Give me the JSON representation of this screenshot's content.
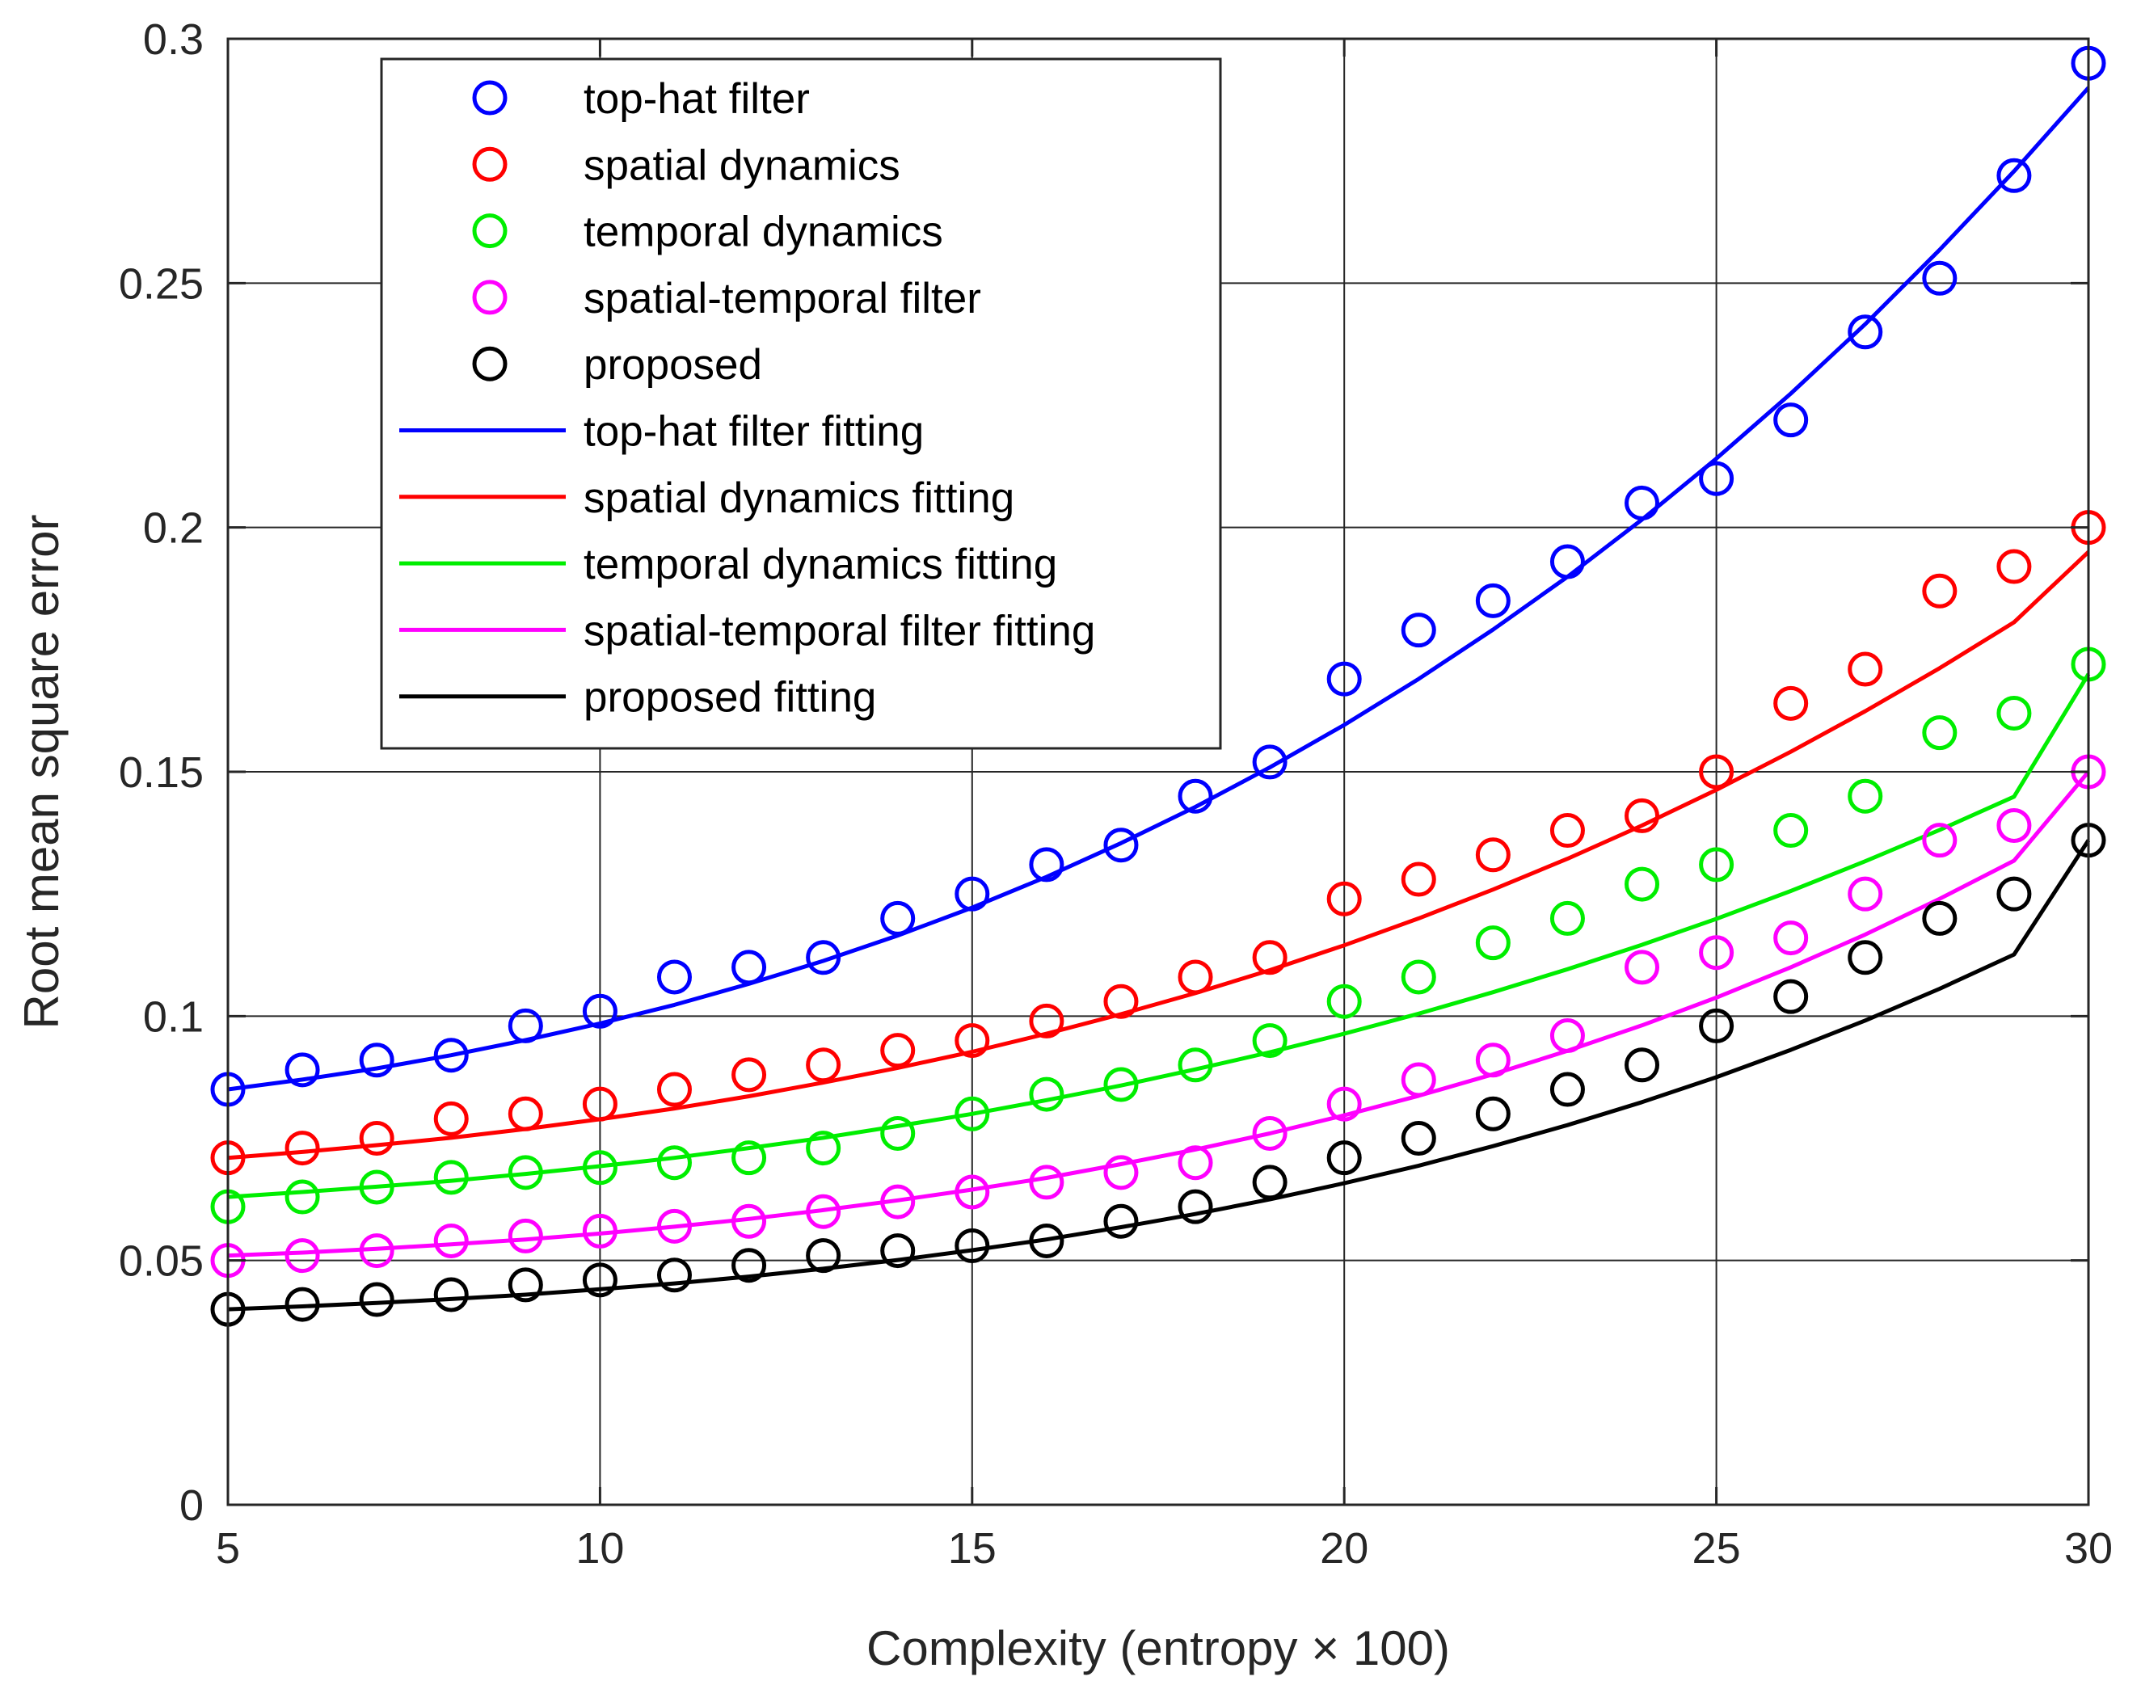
{
  "chart_data": {
    "type": "scatter",
    "title": "",
    "xlabel": "Complexity (entropy × 100)",
    "ylabel": "Root mean square error",
    "xlim": [
      5,
      30
    ],
    "ylim": [
      0,
      0.3
    ],
    "xticks": [
      5,
      10,
      15,
      20,
      25,
      30
    ],
    "xtick_labels": [
      "5",
      "10",
      "15",
      "20",
      "25",
      "30"
    ],
    "yticks": [
      0,
      0.05,
      0.1,
      0.15,
      0.2,
      0.25,
      0.3
    ],
    "ytick_labels": [
      "0",
      "0.05",
      "0.1",
      "0.15",
      "0.2",
      "0.25",
      "0.3"
    ],
    "grid": true,
    "legend_position": "top-left",
    "x": [
      5,
      6,
      7,
      8,
      9,
      10,
      11,
      12,
      13,
      14,
      15,
      16,
      17,
      18,
      19,
      20,
      21,
      22,
      23,
      24,
      25,
      26,
      27,
      28,
      29,
      30
    ],
    "series": [
      {
        "name": "top-hat filter",
        "fit_name": "top-hat filter fitting",
        "color": "#0000ff",
        "values": [
          0.085,
          0.089,
          0.091,
          0.092,
          0.098,
          0.101,
          0.108,
          0.11,
          0.112,
          0.12,
          0.125,
          0.131,
          0.135,
          0.145,
          0.152,
          0.169,
          0.179,
          0.185,
          0.193,
          0.205,
          0.21,
          0.222,
          0.24,
          0.251,
          0.272,
          0.295
        ],
        "fit": [
          0.085,
          0.087,
          0.0893,
          0.092,
          0.0951,
          0.0985,
          0.1023,
          0.1066,
          0.1113,
          0.1165,
          0.1222,
          0.1285,
          0.1354,
          0.1428,
          0.1509,
          0.1596,
          0.169,
          0.1791,
          0.1899,
          0.2016,
          0.2141,
          0.2274,
          0.2416,
          0.2568,
          0.2729,
          0.29
        ]
      },
      {
        "name": "spatial dynamics",
        "fit_name": "spatial dynamics fitting",
        "color": "#ff0000",
        "values": [
          0.071,
          0.073,
          0.075,
          0.079,
          0.08,
          0.082,
          0.085,
          0.088,
          0.09,
          0.093,
          0.095,
          0.099,
          0.103,
          0.108,
          0.112,
          0.124,
          0.128,
          0.133,
          0.138,
          0.141,
          0.15,
          0.164,
          0.171,
          0.187,
          0.192,
          0.2
        ],
        "fit": [
          0.071,
          0.0722,
          0.0736,
          0.0751,
          0.0769,
          0.0789,
          0.0811,
          0.0836,
          0.0864,
          0.0894,
          0.0927,
          0.0964,
          0.1004,
          0.1047,
          0.1094,
          0.1145,
          0.12,
          0.1259,
          0.1322,
          0.139,
          0.1463,
          0.1541,
          0.1624,
          0.1712,
          0.1806,
          0.195
        ]
      },
      {
        "name": "temporal dynamics",
        "fit_name": "temporal dynamics fitting",
        "color": "#00ee00",
        "values": [
          0.061,
          0.063,
          0.065,
          0.067,
          0.068,
          0.069,
          0.07,
          0.071,
          0.073,
          0.076,
          0.08,
          0.084,
          0.086,
          0.09,
          0.095,
          0.103,
          0.108,
          0.115,
          0.12,
          0.127,
          0.131,
          0.138,
          0.145,
          0.158,
          0.162,
          0.172
        ],
        "fit": [
          0.063,
          0.064,
          0.0651,
          0.0663,
          0.0677,
          0.0693,
          0.071,
          0.073,
          0.0751,
          0.0775,
          0.08,
          0.0828,
          0.0858,
          0.0891,
          0.0926,
          0.0964,
          0.1005,
          0.1049,
          0.1096,
          0.1146,
          0.1199,
          0.1256,
          0.1317,
          0.1381,
          0.1449,
          0.17
        ]
      },
      {
        "name": "spatial-temporal filter",
        "fit_name": "spatial-temporal filter fitting",
        "color": "#ff00ff",
        "values": [
          0.05,
          0.051,
          0.052,
          0.054,
          0.055,
          0.056,
          0.057,
          0.058,
          0.06,
          0.062,
          0.064,
          0.066,
          0.068,
          0.07,
          0.076,
          0.082,
          0.087,
          0.091,
          0.096,
          0.11,
          0.113,
          0.116,
          0.125,
          0.136,
          0.139,
          0.15
        ],
        "fit": [
          0.051,
          0.0516,
          0.0524,
          0.0533,
          0.0543,
          0.0555,
          0.0569,
          0.0585,
          0.0603,
          0.0623,
          0.0645,
          0.0669,
          0.0697,
          0.0727,
          0.076,
          0.0797,
          0.0837,
          0.0881,
          0.0929,
          0.0981,
          0.1038,
          0.11,
          0.1167,
          0.124,
          0.1318,
          0.15
        ]
      },
      {
        "name": "proposed",
        "fit_name": "proposed fitting",
        "color": "#000000",
        "values": [
          0.04,
          0.041,
          0.042,
          0.043,
          0.045,
          0.046,
          0.047,
          0.049,
          0.051,
          0.052,
          0.053,
          0.054,
          0.058,
          0.061,
          0.066,
          0.071,
          0.075,
          0.08,
          0.085,
          0.09,
          0.098,
          0.104,
          0.112,
          0.12,
          0.125,
          0.136
        ],
        "fit": [
          0.04,
          0.0406,
          0.0413,
          0.0421,
          0.043,
          0.0441,
          0.0453,
          0.0467,
          0.0483,
          0.0501,
          0.0521,
          0.0543,
          0.0568,
          0.0595,
          0.0625,
          0.0658,
          0.0694,
          0.0734,
          0.0777,
          0.0824,
          0.0875,
          0.0931,
          0.0991,
          0.1056,
          0.1126,
          0.136
        ]
      }
    ]
  }
}
